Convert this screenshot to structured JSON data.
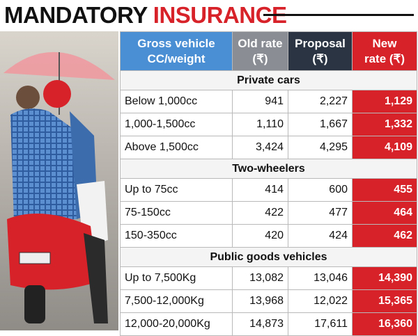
{
  "header": {
    "title_black": "MANDATORY",
    "title_red": "INSURANCE"
  },
  "table": {
    "columns": [
      "Gross vehicle\nCC/weight",
      "Old rate\n(₹)",
      "Proposal\n(₹)",
      "New\nrate (₹)"
    ],
    "sections": [
      {
        "name": "Private cars",
        "rows": [
          [
            "Below 1,000cc",
            "941",
            "2,227",
            "1,129"
          ],
          [
            "1,000-1,500cc",
            "1,110",
            "1,667",
            "1,332"
          ],
          [
            "Above 1,500cc",
            "3,424",
            "4,295",
            "4,109"
          ]
        ]
      },
      {
        "name": "Two-wheelers",
        "rows": [
          [
            "Up to 75cc",
            "414",
            "600",
            "455"
          ],
          [
            "75-150cc",
            "422",
            "477",
            "464"
          ],
          [
            "150-350cc",
            "420",
            "424",
            "462"
          ]
        ]
      },
      {
        "name": "Public goods vehicles",
        "rows": [
          [
            "Up to 7,500Kg",
            "13,082",
            "13,046",
            "14,390"
          ],
          [
            "7,500-12,000Kg",
            "13,968",
            "12,022",
            "15,365"
          ],
          [
            "12,000-20,000Kg",
            "14,873",
            "17,611",
            "16,360"
          ]
        ]
      }
    ]
  }
}
